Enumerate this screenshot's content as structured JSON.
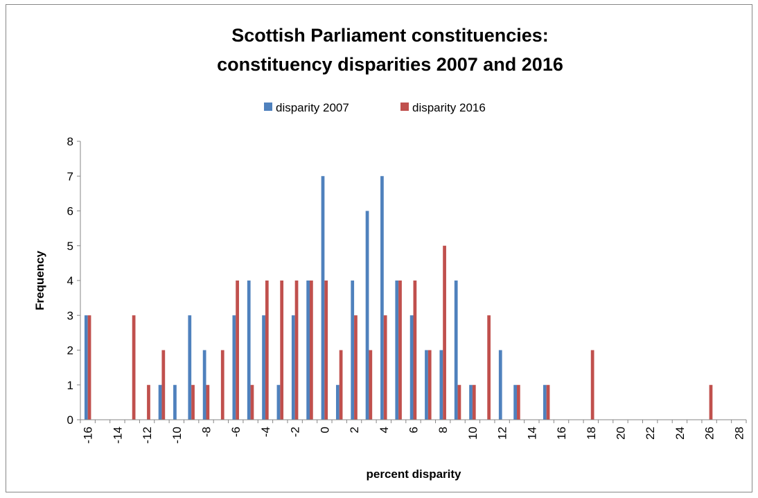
{
  "chart_data": {
    "type": "bar",
    "title_lines": [
      "Scottish Parliament constituencies:",
      "constituency disparities 2007 and 2016"
    ],
    "xlabel": "percent disparity",
    "ylabel": "Frequency",
    "ylim": [
      0,
      8
    ],
    "y_ticks": [
      0,
      1,
      2,
      3,
      4,
      5,
      6,
      7,
      8
    ],
    "x": [
      -16,
      -15,
      -14,
      -13,
      -12,
      -11,
      -10,
      -9,
      -8,
      -7,
      -6,
      -5,
      -4,
      -3,
      -2,
      -1,
      0,
      1,
      2,
      3,
      4,
      5,
      6,
      7,
      8,
      9,
      10,
      11,
      12,
      13,
      14,
      15,
      16,
      17,
      18,
      19,
      20,
      21,
      22,
      23,
      24,
      25,
      26,
      27,
      28
    ],
    "x_tick_labels": [
      "-16",
      "-14",
      "-12",
      "-10",
      "-8",
      "-6",
      "-4",
      "-2",
      "0",
      "2",
      "4",
      "6",
      "8",
      "10",
      "12",
      "14",
      "16",
      "18",
      "20",
      "22",
      "24",
      "26",
      "28"
    ],
    "series": [
      {
        "name": "disparity 2007",
        "color": "#4F81BD",
        "values": [
          3,
          0,
          0,
          0,
          0,
          1,
          1,
          3,
          2,
          0,
          3,
          4,
          3,
          1,
          3,
          4,
          7,
          1,
          4,
          6,
          7,
          4,
          3,
          2,
          2,
          4,
          1,
          0,
          2,
          1,
          0,
          1,
          0,
          0,
          0,
          0,
          0,
          0,
          0,
          0,
          0,
          0,
          0,
          0,
          0
        ]
      },
      {
        "name": "disparity 2016",
        "color": "#C0504D",
        "values": [
          3,
          0,
          0,
          3,
          1,
          2,
          0,
          1,
          1,
          2,
          4,
          1,
          4,
          4,
          4,
          4,
          4,
          2,
          3,
          2,
          3,
          4,
          4,
          2,
          5,
          1,
          1,
          3,
          0,
          1,
          0,
          1,
          0,
          0,
          2,
          0,
          0,
          0,
          0,
          0,
          0,
          0,
          1,
          0,
          0
        ]
      }
    ],
    "legend_position": "top",
    "grid": false
  }
}
